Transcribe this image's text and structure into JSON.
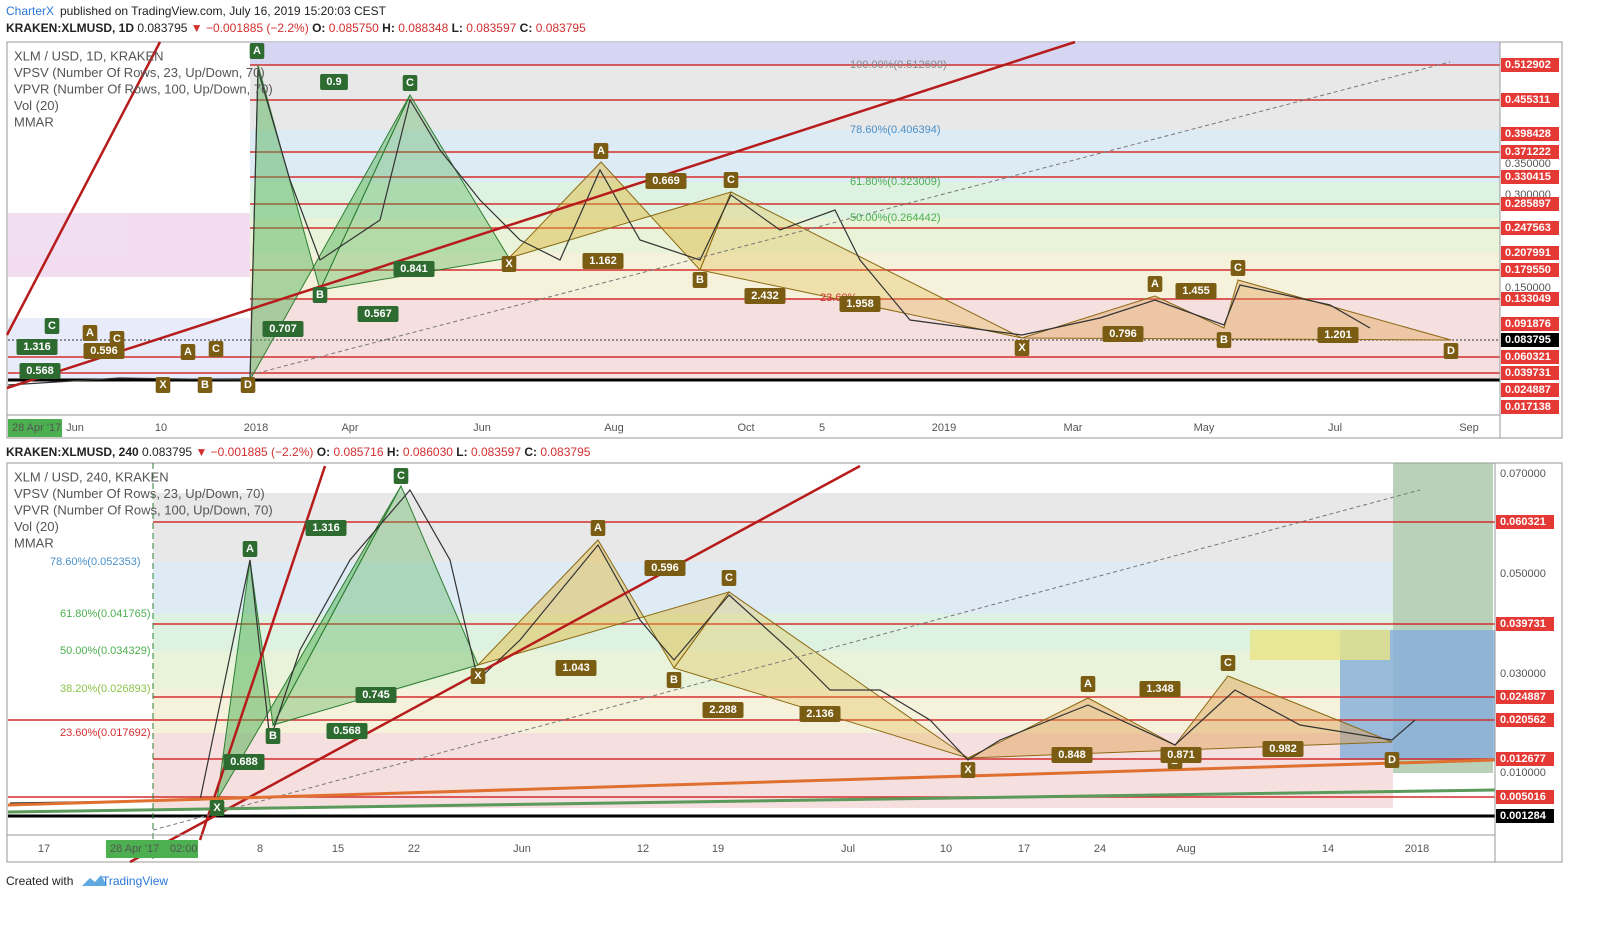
{
  "header": {
    "author": "CharterX",
    "published": "published on TradingView.com, July 16, 2019 15:20:03 CEST"
  },
  "panels": [
    {
      "symbol": "KRAKEN:XLMUSD, 1D",
      "last": "0.083795",
      "change": "▼ −0.001885 (−2.2%)",
      "ohlc": [
        {
          "label": "O:",
          "value": "0.085750"
        },
        {
          "label": "H:",
          "value": "0.088348"
        },
        {
          "label": "L:",
          "value": "0.083597"
        },
        {
          "label": "C:",
          "value": "0.083795"
        }
      ],
      "legend": [
        "XLM / USD, 1D, KRAKEN",
        "VPSV (Number Of Rows, 23, Up/Down, 70)",
        "VPVR (Number Of Rows, 100, Up/Down, 70)",
        "Vol (20)",
        "MMAR"
      ],
      "price_labels": [
        "0.512902",
        "0.455311",
        "0.398428",
        "0.371222",
        "0.330415",
        "0.285897",
        "0.247563",
        "0.207991",
        "0.179550",
        "0.133049",
        "0.091876",
        "0.083795",
        "0.060321",
        "0.039731",
        "0.024887",
        "0.017138"
      ],
      "axis_labels": [
        "0.350000",
        "0.300000",
        "0.150000"
      ],
      "time_labels": [
        "Jun",
        "10",
        "2018",
        "Apr",
        "Jun",
        "Aug",
        "Oct",
        "5",
        "2019",
        "Mar",
        "May",
        "Jul",
        "Sep"
      ],
      "start_badge": [
        "28 Apr '17"
      ],
      "fib_labels": [
        "100.00%(0.512609)",
        "78.60%(0.406394)",
        "61.80%(0.323009)",
        "50.00%(0.264442)",
        "23.60%"
      ],
      "pattern_labels": [
        "A",
        "0.9",
        "C",
        "B",
        "0.841",
        "0.707",
        "0.567",
        "X",
        "A",
        "0.669",
        "C",
        "1.162",
        "B",
        "2.432",
        "1.958",
        "X",
        "0.796",
        "A",
        "1.455",
        "C",
        "B",
        "1.201",
        "D",
        "C",
        "1.316",
        "0.568",
        "A",
        "C",
        "0.596",
        "A",
        "C",
        "X",
        "B",
        "D"
      ]
    },
    {
      "symbol": "KRAKEN:XLMUSD, 240",
      "last": "0.083795",
      "change": "▼ −0.001885 (−2.2%)",
      "ohlc": [
        {
          "label": "O:",
          "value": "0.085716"
        },
        {
          "label": "H:",
          "value": "0.086030"
        },
        {
          "label": "L:",
          "value": "0.083597"
        },
        {
          "label": "C:",
          "value": "0.083795"
        }
      ],
      "legend": [
        "XLM / USD, 240, KRAKEN",
        "VPSV (Number Of Rows, 23, Up/Down, 70)",
        "VPVR (Number Of Rows, 100, Up/Down, 70)",
        "Vol (20)",
        "MMAR"
      ],
      "price_labels": [
        "0.060321",
        "0.039731",
        "0.024887",
        "0.020562",
        "0.012677",
        "0.005016",
        "0.001284"
      ],
      "axis_labels": [
        "0.070000",
        "0.050000",
        "0.030000",
        "0.010000"
      ],
      "time_labels": [
        "17",
        "8",
        "15",
        "22",
        "Jun",
        "12",
        "19",
        "Jul",
        "10",
        "17",
        "24",
        "Aug",
        "14",
        "2018"
      ],
      "start_badge": [
        "28 Apr '17",
        "02:00"
      ],
      "fib_labels": [
        "78.60%(0.052353)",
        "61.80%(0.041765)",
        "50.00%(0.034329)",
        "38.20%(0.026893)",
        "23.60%(0.017692)"
      ],
      "pattern_labels": [
        "C",
        "A",
        "1.316",
        "B",
        "X",
        "0.688",
        "0.745",
        "0.568",
        "X",
        "A",
        "0.596",
        "C",
        "B",
        "1.043",
        "2.288",
        "2.136",
        "X",
        "A",
        "1.348",
        "C",
        "B",
        "0.871",
        "0.848",
        "0.982",
        "D"
      ]
    }
  ],
  "footer": {
    "created": "Created with",
    "brand": "TradingView"
  }
}
